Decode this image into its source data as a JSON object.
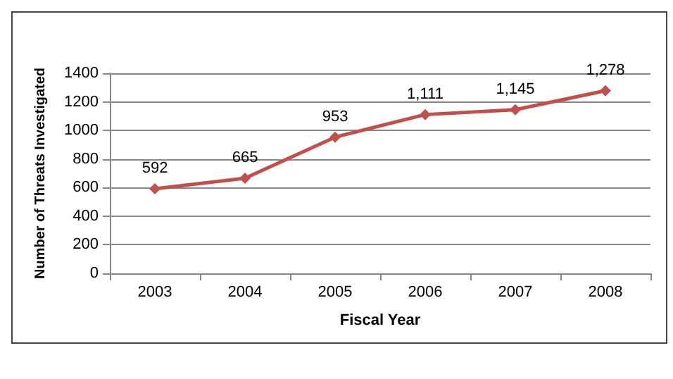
{
  "chart_data": {
    "type": "line",
    "xlabel": "Fiscal Year",
    "ylabel": "Number of Threats Investigated",
    "categories": [
      "2003",
      "2004",
      "2005",
      "2006",
      "2007",
      "2008"
    ],
    "series": [
      {
        "color": "#c0504d",
        "values": [
          592,
          665,
          953,
          1111,
          1145,
          1278
        ],
        "value_labels": [
          "592",
          "665",
          "953",
          "1,111",
          "1,145",
          "1,278"
        ]
      }
    ],
    "ylim": [
      0,
      1400
    ],
    "yticks": [
      0,
      200,
      400,
      600,
      800,
      1000,
      1200,
      1400
    ],
    "grid": "y",
    "marker": "diamond",
    "line_style": "solid"
  }
}
